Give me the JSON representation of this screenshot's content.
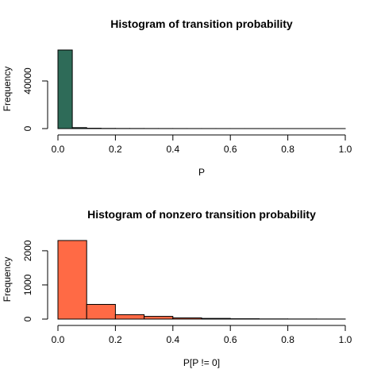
{
  "chart_data": [
    {
      "type": "bar",
      "title": "Histogram of transition probability",
      "xlabel": "P",
      "ylabel": "Frequency",
      "bar_color": "#2e6b58",
      "bin_edges": [
        0,
        0.05,
        0.1,
        0.15,
        0.2,
        0.25,
        0.3,
        0.35,
        0.4,
        0.45,
        0.5,
        0.55,
        0.6,
        0.65,
        0.7,
        0.75,
        0.8,
        0.85,
        0.9,
        0.95,
        1.0
      ],
      "values": [
        66000,
        800,
        300,
        150,
        100,
        80,
        60,
        50,
        40,
        30,
        25,
        20,
        15,
        12,
        10,
        8,
        6,
        5,
        4,
        3
      ],
      "xlim": [
        0,
        1
      ],
      "ylim": [
        0,
        66000
      ],
      "xticks": [
        0.0,
        0.2,
        0.4,
        0.6,
        0.8,
        1.0
      ],
      "xtick_labels": [
        "0.0",
        "0.2",
        "0.4",
        "0.6",
        "0.8",
        "1.0"
      ],
      "yticks": [
        0,
        40000
      ],
      "ytick_labels": [
        "0",
        "40000"
      ]
    },
    {
      "type": "bar",
      "title": "Histogram of nonzero transition probability",
      "xlabel": "P[P != 0]",
      "ylabel": "Frequency",
      "bar_color": "#ff6a45",
      "bin_edges": [
        0,
        0.1,
        0.2,
        0.3,
        0.4,
        0.5,
        0.6,
        0.7,
        0.8,
        0.9,
        1.0
      ],
      "values": [
        2300,
        430,
        130,
        80,
        35,
        20,
        10,
        5,
        3,
        2
      ],
      "xlim": [
        0,
        1
      ],
      "ylim": [
        0,
        2300
      ],
      "xticks": [
        0.0,
        0.2,
        0.4,
        0.6,
        0.8,
        1.0
      ],
      "xtick_labels": [
        "0.0",
        "0.2",
        "0.4",
        "0.6",
        "0.8",
        "1.0"
      ],
      "yticks": [
        0,
        1000,
        2000
      ],
      "ytick_labels": [
        "0",
        "1000",
        "2000"
      ]
    }
  ]
}
